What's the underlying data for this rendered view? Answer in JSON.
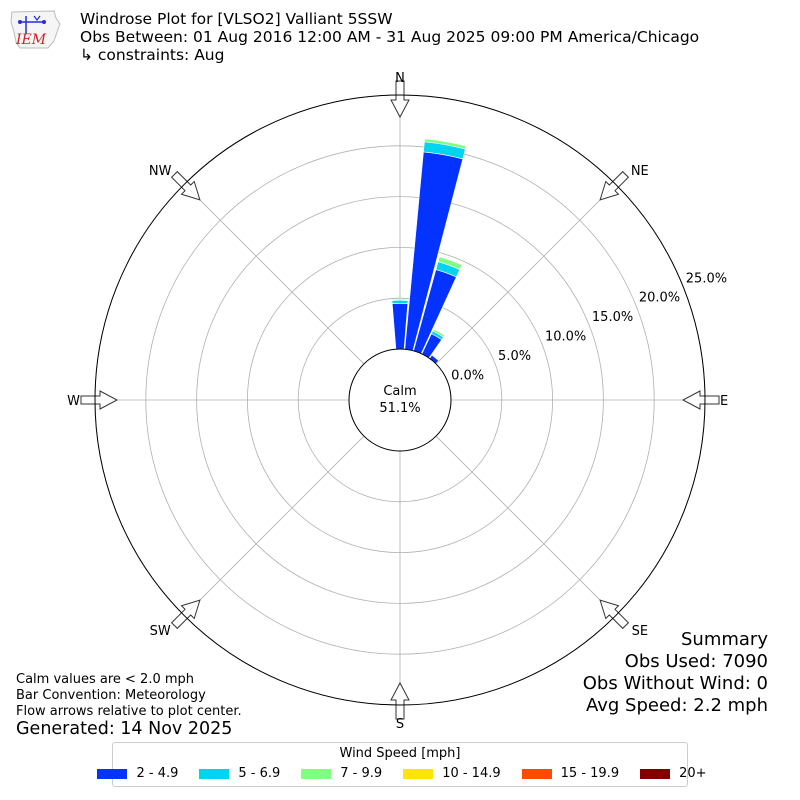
{
  "header": {
    "title": "Windrose Plot for [VLSO2] Valliant 5SSW",
    "subtitle": "Obs Between: 01 Aug 2016 12:00 AM - 31 Aug 2025 09:00 PM America/Chicago",
    "constraints": "↳ constraints: Aug",
    "logo_text": "IEM"
  },
  "chart_data": {
    "type": "windrose",
    "calm": {
      "label": "Calm",
      "value_text": "51.1%",
      "percent": 51.1
    },
    "directions": [
      "N",
      "NE",
      "E",
      "SE",
      "S",
      "SW",
      "W",
      "NW"
    ],
    "radial_ticks": [
      0,
      5,
      10,
      15,
      20,
      25
    ],
    "radial_tick_labels": [
      "0.0%",
      "5.0%",
      "10.0%",
      "15.0%",
      "20.0%",
      "25.0%"
    ],
    "rmax": 25,
    "bar_convention": "meteorology",
    "speed_bins": [
      {
        "name": "2 - 4.9",
        "color": "#0433ff"
      },
      {
        "name": "5 - 6.9",
        "color": "#00d4ee"
      },
      {
        "name": "7 - 9.9",
        "color": "#80ff80"
      },
      {
        "name": "10 - 14.9",
        "color": "#ffe600"
      },
      {
        "name": "15 - 19.9",
        "color": "#ff4a00"
      },
      {
        "name": "20+",
        "color": "#800000"
      }
    ],
    "series": [
      {
        "direction_deg": 0,
        "values": [
          4.5,
          0.3,
          0.1,
          0,
          0,
          0
        ]
      },
      {
        "direction_deg": 10,
        "values": [
          19.5,
          1.0,
          0.3,
          0,
          0,
          0
        ]
      },
      {
        "direction_deg": 20,
        "values": [
          8.3,
          0.8,
          0.5,
          0,
          0,
          0
        ]
      },
      {
        "direction_deg": 30,
        "values": [
          2.2,
          0.3,
          0.2,
          0,
          0,
          0
        ]
      },
      {
        "direction_deg": 40,
        "values": [
          0.4,
          0,
          0,
          0,
          0,
          0
        ]
      }
    ]
  },
  "notes": {
    "line1": "Calm values are < 2.0 mph",
    "line2": "Bar Convention: Meteorology",
    "line3": "Flow arrows relative to plot center.",
    "generated": "Generated: 14 Nov 2025"
  },
  "summary": {
    "title": "Summary",
    "obs_used": "Obs Used: 7090",
    "obs_without_wind": "Obs Without Wind: 0",
    "avg_speed": "Avg Speed: 2.2 mph"
  },
  "legend": {
    "title": "Wind Speed [mph]",
    "items": [
      {
        "label": "2 - 4.9",
        "color": "#0433ff"
      },
      {
        "label": "5 - 6.9",
        "color": "#00d4ee"
      },
      {
        "label": "7 - 9.9",
        "color": "#80ff80"
      },
      {
        "label": "10 - 14.9",
        "color": "#ffe600"
      },
      {
        "label": "15 - 19.9",
        "color": "#ff4a00"
      },
      {
        "label": "20+",
        "color": "#800000"
      }
    ]
  }
}
